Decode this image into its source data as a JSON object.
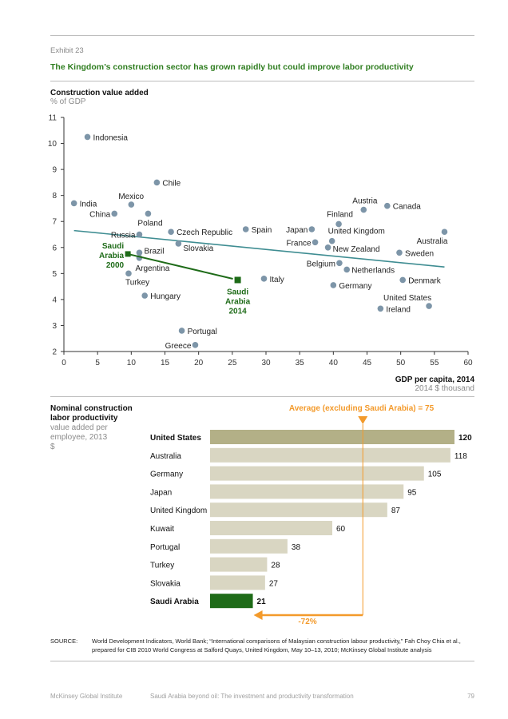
{
  "exhibit": "Exhibit 23",
  "headline": "The Kingdom’s construction sector has grown rapidly but could improve labor productivity",
  "colors": {
    "green": "#1e6b18",
    "dot": "#7d95a8",
    "trend": "#3f8d92",
    "bar_top": "#b3b087",
    "bar": "#d9d6c2",
    "orange": "#f39a2b"
  },
  "chart_data": [
    {
      "type": "scatter",
      "title": "Construction value added",
      "ylabel": "% of GDP",
      "xlabel": "GDP per capita, 2014",
      "xunit": "2014 $ thousand",
      "xlim": [
        0,
        60
      ],
      "ylim": [
        2,
        11
      ],
      "xticks": [
        "0",
        "5",
        "10",
        "15",
        "20",
        "25",
        "30",
        "35",
        "40",
        "45",
        "50",
        "55",
        "60"
      ],
      "yticks": [
        "2",
        "3",
        "4",
        "5",
        "6",
        "7",
        "8",
        "9",
        "10",
        "11"
      ],
      "trendline": {
        "from": [
          1.5,
          6.65
        ],
        "to": [
          56.5,
          5.25
        ]
      },
      "points": [
        {
          "label": "Indonesia",
          "x": 3.5,
          "y": 10.25
        },
        {
          "label": "Chile",
          "x": 13.8,
          "y": 8.5
        },
        {
          "label": "India",
          "x": 1.5,
          "y": 7.7
        },
        {
          "label": "Mexico",
          "x": 10.0,
          "y": 7.65
        },
        {
          "label": "China",
          "x": 7.5,
          "y": 7.3
        },
        {
          "label": "Poland",
          "x": 12.5,
          "y": 7.3
        },
        {
          "label": "Russia",
          "x": 11.2,
          "y": 6.5
        },
        {
          "label": "Czech Republic",
          "x": 15.9,
          "y": 6.6
        },
        {
          "label": "Slovakia",
          "x": 17.0,
          "y": 6.15
        },
        {
          "label": "Brazil",
          "x": 11.2,
          "y": 5.8
        },
        {
          "label": "Argentina",
          "x": 11.2,
          "y": 5.6
        },
        {
          "label": "Turkey",
          "x": 9.6,
          "y": 5.0
        },
        {
          "label": "Hungary",
          "x": 12.0,
          "y": 4.15
        },
        {
          "label": "Portugal",
          "x": 17.5,
          "y": 2.8
        },
        {
          "label": "Greece",
          "x": 19.5,
          "y": 2.25
        },
        {
          "label": "Spain",
          "x": 27.0,
          "y": 6.7
        },
        {
          "label": "Italy",
          "x": 29.7,
          "y": 4.8
        },
        {
          "label": "Japan",
          "x": 36.8,
          "y": 6.7
        },
        {
          "label": "Finland",
          "x": 40.8,
          "y": 6.9
        },
        {
          "label": "France",
          "x": 37.3,
          "y": 6.2
        },
        {
          "label": "United Kingdom",
          "x": 39.8,
          "y": 6.25
        },
        {
          "label": "New Zealand",
          "x": 39.2,
          "y": 6.0
        },
        {
          "label": "Belgium",
          "x": 40.9,
          "y": 5.4
        },
        {
          "label": "Netherlands",
          "x": 42.0,
          "y": 5.15
        },
        {
          "label": "Germany",
          "x": 40.0,
          "y": 4.55
        },
        {
          "label": "Austria",
          "x": 44.5,
          "y": 7.45
        },
        {
          "label": "Canada",
          "x": 48.0,
          "y": 7.6
        },
        {
          "label": "Australia",
          "x": 56.5,
          "y": 6.6
        },
        {
          "label": "Sweden",
          "x": 49.8,
          "y": 5.8
        },
        {
          "label": "Denmark",
          "x": 50.3,
          "y": 4.75
        },
        {
          "label": "United States",
          "x": 54.2,
          "y": 3.75
        },
        {
          "label": "Ireland",
          "x": 47.0,
          "y": 3.65
        }
      ],
      "highlight": {
        "start": {
          "label": "Saudi Arabia 2000",
          "lines": [
            "Saudi",
            "Arabia",
            "2000"
          ],
          "x": 9.5,
          "y": 5.75
        },
        "end": {
          "label": "Saudi Arabia 2014",
          "lines": [
            "Saudi",
            "Arabia",
            "2014"
          ],
          "x": 25.8,
          "y": 4.75
        }
      }
    },
    {
      "type": "bar",
      "title": "Nominal construction labor productivity",
      "subtitle": "value added per employee, 2013",
      "unit": "$",
      "average_label": "Average (excluding Saudi Arabia) = 75",
      "average": 75,
      "delta_label": "-72%",
      "max": 120,
      "categories": [
        "United States",
        "Australia",
        "Germany",
        "Japan",
        "United Kingdom",
        "Kuwait",
        "Portugal",
        "Turkey",
        "Slovakia",
        "Saudi Arabia"
      ],
      "values": [
        120,
        118,
        105,
        95,
        87,
        60,
        38,
        28,
        27,
        21
      ]
    }
  ],
  "source_label": "SOURCE:",
  "source_text": "World Development Indicators, World Bank; “International comparisons of Malaysian construction labour productivity,” Fah Choy Chia et al., prepared for CIB 2010 World Congress at Salford Quays, United Kingdom, May 10–13, 2010; McKinsey Global Institute analysis",
  "footer": {
    "org": "McKinsey Global Institute",
    "report": "Saudi Arabia beyond oil: The investment and productivity transformation",
    "page": "79"
  }
}
